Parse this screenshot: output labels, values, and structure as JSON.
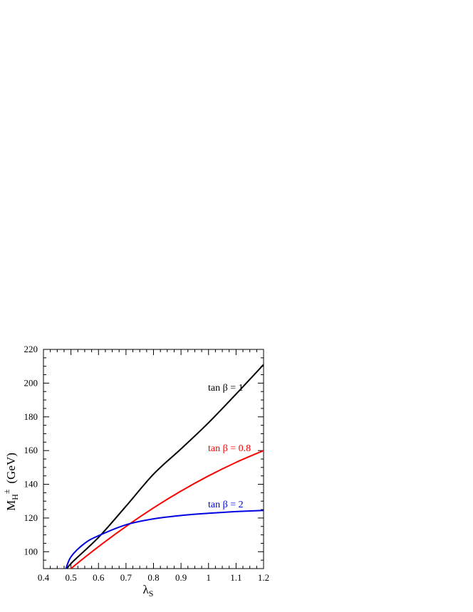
{
  "chart_data": {
    "type": "line",
    "xlabel": "λ",
    "xlabel_sub": "S",
    "ylabel": "M",
    "ylabel_sub": "H",
    "ylabel_sup": "±",
    "ylabel_unit": "(GeV)",
    "xlim": [
      0.4,
      1.2
    ],
    "ylim": [
      90,
      220
    ],
    "x_ticks": [
      0.4,
      0.5,
      0.6,
      0.7,
      0.8,
      0.9,
      1.0,
      1.1,
      1.2
    ],
    "x_tick_labels": [
      "0.4",
      "0.5",
      "0.6",
      "0.7",
      "0.8",
      "0.9",
      "1",
      "1.1",
      "1.2"
    ],
    "y_ticks": [
      100,
      120,
      140,
      160,
      180,
      200,
      220
    ],
    "y_tick_labels": [
      "100",
      "120",
      "140",
      "160",
      "180",
      "200",
      "220"
    ],
    "grid": false,
    "legend": "inline labels near curve ends",
    "series": [
      {
        "name": "tan β = 1",
        "color": "#000000",
        "x": [
          0.48,
          0.5,
          0.6,
          0.7,
          0.8,
          0.9,
          1.0,
          1.1,
          1.2
        ],
        "y": [
          88,
          93,
          108.5,
          127,
          146,
          161,
          176.5,
          193.5,
          211
        ]
      },
      {
        "name": "tan β = 0.8",
        "color": "#ff0000",
        "x": [
          0.49,
          0.5,
          0.6,
          0.7,
          0.8,
          0.9,
          1.0,
          1.1,
          1.2
        ],
        "y": [
          88,
          90,
          103,
          115,
          126,
          136,
          145,
          153,
          160
        ]
      },
      {
        "name": "tan β = 2",
        "color": "#0000e0",
        "x": [
          0.48,
          0.5,
          0.55,
          0.6,
          0.7,
          0.8,
          0.9,
          1.0,
          1.1,
          1.2
        ],
        "y": [
          89,
          97,
          105,
          109.5,
          116,
          119.5,
          121.5,
          122.8,
          123.8,
          124.5
        ]
      }
    ]
  }
}
